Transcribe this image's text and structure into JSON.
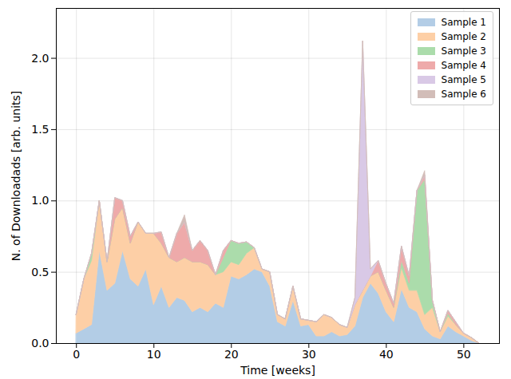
{
  "chart_data": {
    "type": "area",
    "stacked": true,
    "grid": true,
    "legend": "upper right",
    "xlabel": "Time [weeks]",
    "ylabel": "N. of Downloadads [arb. units]",
    "xlim": [
      -2.6,
      54.6
    ],
    "xticks": [
      0,
      10,
      20,
      30,
      40,
      50
    ],
    "ylim": [
      0,
      2.35
    ],
    "yticks": [
      {
        "value": 0,
        "label": "0.0"
      },
      0.5,
      {
        "value": 1,
        "label": "1.0"
      },
      1.5,
      {
        "value": 2,
        "label": "2.0"
      }
    ],
    "x": [
      0,
      1,
      2,
      3,
      4,
      5,
      6,
      7,
      8,
      9,
      10,
      11,
      12,
      13,
      14,
      15,
      16,
      17,
      18,
      19,
      20,
      21,
      22,
      23,
      24,
      25,
      26,
      27,
      28,
      29,
      30,
      31,
      32,
      33,
      34,
      35,
      36,
      37,
      38,
      39,
      40,
      41,
      42,
      43,
      44,
      45,
      46,
      47,
      48,
      49,
      50,
      51,
      52
    ],
    "series": [
      {
        "name": "Sample 1",
        "color": "#b3cde6",
        "values": [
          0.07,
          0.1,
          0.13,
          0.65,
          0.37,
          0.42,
          0.65,
          0.45,
          0.4,
          0.52,
          0.27,
          0.4,
          0.25,
          0.32,
          0.3,
          0.22,
          0.25,
          0.22,
          0.28,
          0.25,
          0.47,
          0.45,
          0.48,
          0.52,
          0.5,
          0.4,
          0.15,
          0.12,
          0.3,
          0.12,
          0.13,
          0.05,
          0.05,
          0.08,
          0.05,
          0.06,
          0.12,
          0.32,
          0.42,
          0.35,
          0.22,
          0.15,
          0.38,
          0.25,
          0.22,
          0.1,
          0.05,
          0.03,
          0.12,
          0.08,
          0.05,
          0.02,
          0
        ]
      },
      {
        "name": "Sample 2",
        "color": "#fdcfa6",
        "values": [
          0.13,
          0.35,
          0.45,
          0.35,
          0.2,
          0.45,
          0.3,
          0.25,
          0.45,
          0.25,
          0.5,
          0.3,
          0.35,
          0.25,
          0.3,
          0.35,
          0.32,
          0.33,
          0.2,
          0.25,
          0.1,
          0.1,
          0.15,
          0.15,
          0.02,
          0.1,
          0.05,
          0.05,
          0.1,
          0.05,
          0.03,
          0.1,
          0.15,
          0.1,
          0.08,
          0.05,
          0.15,
          0.05,
          0.05,
          0.15,
          0.15,
          0.1,
          0.15,
          0.12,
          0.15,
          0.1,
          0.2,
          0.05,
          0.07,
          0.05,
          0.02,
          0.02,
          0
        ]
      },
      {
        "name": "Sample 3",
        "color": "#abdcab",
        "values": [
          0,
          0,
          0.05,
          0,
          0,
          0,
          0,
          0,
          0,
          0,
          0,
          0,
          0,
          0,
          0,
          0,
          0,
          0,
          0,
          0.1,
          0.15,
          0.15,
          0.08,
          0,
          0,
          0,
          0,
          0,
          0,
          0,
          0,
          0,
          0,
          0,
          0,
          0,
          0,
          0,
          0,
          0,
          0,
          0,
          0.05,
          0.05,
          0.7,
          0.95,
          0.05,
          0,
          0.02,
          0,
          0,
          0,
          0
        ]
      },
      {
        "name": "Sample 4",
        "color": "#eeaaaa",
        "values": [
          0,
          0,
          0,
          0,
          0,
          0.15,
          0.05,
          0.05,
          0,
          0,
          0,
          0.08,
          0,
          0.2,
          0.25,
          0.08,
          0.15,
          0.1,
          0,
          0.05,
          0,
          0,
          0,
          0,
          0,
          0,
          0,
          0,
          0,
          0,
          0,
          0,
          0,
          0,
          0,
          0,
          0,
          0,
          0,
          0.08,
          0.05,
          0.03,
          0.1,
          0.05,
          0,
          0.03,
          0,
          0,
          0.02,
          0.02,
          0,
          0,
          0
        ]
      },
      {
        "name": "Sample 5",
        "color": "#d9c9e6",
        "values": [
          0,
          0,
          0,
          0,
          0,
          0,
          0,
          0,
          0,
          0,
          0,
          0,
          0,
          0,
          0,
          0,
          0,
          0,
          0,
          0,
          0,
          0,
          0,
          0,
          0,
          0,
          0,
          0,
          0,
          0,
          0,
          0,
          0,
          0,
          0,
          0,
          0.05,
          1.75,
          0.05,
          0,
          0,
          0,
          0,
          0,
          0,
          0,
          0,
          0,
          0,
          0,
          0,
          0,
          0
        ]
      },
      {
        "name": "Sample 6",
        "color": "#d2bdb8",
        "values": [
          0,
          0,
          0,
          0,
          0,
          0,
          0,
          0,
          0,
          0,
          0,
          0,
          0,
          0,
          0.05,
          0,
          0,
          0,
          0,
          0,
          0,
          0,
          0,
          0,
          0,
          0,
          0,
          0,
          0,
          0,
          0,
          0,
          0,
          0,
          0,
          0,
          0,
          0,
          0,
          0,
          0,
          0,
          0,
          0,
          0,
          0.03,
          0,
          0,
          0,
          0,
          0,
          0,
          0
        ]
      }
    ]
  }
}
